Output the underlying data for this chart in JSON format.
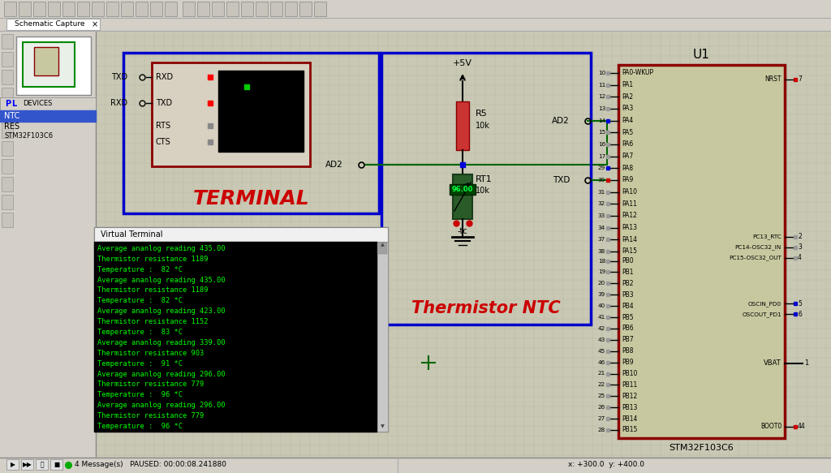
{
  "bg_color": "#c8c8b4",
  "grid_color": "#b8b8a0",
  "toolbar_bg": "#d4d0c8",
  "left_panel_bg": "#d4d0c8",
  "terminal_bg": "#000000",
  "terminal_text_color": "#00ff00",
  "terminal_title": "Virtual Terminal",
  "terminal_lines": [
    "Average ananlog reading 435.00",
    "Thermistor resistance 1189",
    "Temperature :  82 *C",
    "Average ananlog reading 435.00",
    "Thermistor resistance 1189",
    "Temperature :  82 *C",
    "Average ananlog reading 423.00",
    "Thermistor resistance 1152",
    "Temperature :  83 *C",
    "Average ananlog reading 339.00",
    "Thermistor resistance 903",
    "Temperature :  91 *C",
    "Average ananlog reading 296.00",
    "Thermistor resistance 779",
    "Temperature :  96 *C",
    "Average ananlog reading 296.00",
    "Thermistor resistance 779",
    "Temperature :  96 *C"
  ],
  "schematic_title": "Schematic Capture",
  "u1_label": "U1",
  "u1_sublabel": "STM32F103C6",
  "u1_fill": "#c8c8a0",
  "u1_border": "#8b0000",
  "left_pins_pa": [
    {
      "num": "10",
      "name": "PA0-WKUP",
      "sq": "gray"
    },
    {
      "num": "11",
      "name": "PA1",
      "sq": "gray"
    },
    {
      "num": "12",
      "name": "PA2",
      "sq": "gray"
    },
    {
      "num": "13",
      "name": "PA3",
      "sq": "gray"
    },
    {
      "num": "14",
      "name": "PA4",
      "sq": "blue"
    },
    {
      "num": "15",
      "name": "PA5",
      "sq": "gray"
    },
    {
      "num": "16",
      "name": "PA6",
      "sq": "gray"
    },
    {
      "num": "17",
      "name": "PA7",
      "sq": "gray"
    },
    {
      "num": "29",
      "name": "PA8",
      "sq": "blue"
    },
    {
      "num": "30",
      "name": "PA9",
      "sq": "red"
    },
    {
      "num": "31",
      "name": "PA10",
      "sq": "gray"
    },
    {
      "num": "32",
      "name": "PA11",
      "sq": "gray"
    },
    {
      "num": "33",
      "name": "PA12",
      "sq": "gray"
    },
    {
      "num": "34",
      "name": "PA13",
      "sq": "gray"
    },
    {
      "num": "37",
      "name": "PA14",
      "sq": "gray"
    },
    {
      "num": "38",
      "name": "PA15",
      "sq": "gray"
    }
  ],
  "left_pins_pb": [
    {
      "num": "18",
      "name": "PB0",
      "sq": "gray"
    },
    {
      "num": "19",
      "name": "PB1",
      "sq": "gray"
    },
    {
      "num": "20",
      "name": "PB2",
      "sq": "gray"
    },
    {
      "num": "39",
      "name": "PB3",
      "sq": "gray"
    },
    {
      "num": "40",
      "name": "PB4",
      "sq": "gray"
    },
    {
      "num": "41",
      "name": "PB5",
      "sq": "gray"
    },
    {
      "num": "42",
      "name": "PB6",
      "sq": "gray"
    },
    {
      "num": "43",
      "name": "PB7",
      "sq": "gray"
    },
    {
      "num": "45",
      "name": "PB8",
      "sq": "gray"
    },
    {
      "num": "46",
      "name": "PB9",
      "sq": "gray"
    },
    {
      "num": "21",
      "name": "PB10",
      "sq": "gray"
    },
    {
      "num": "22",
      "name": "PB11",
      "sq": "gray"
    },
    {
      "num": "25",
      "name": "PB12",
      "sq": "gray"
    },
    {
      "num": "26",
      "name": "PB13",
      "sq": "gray"
    },
    {
      "num": "27",
      "name": "PB14",
      "sq": "gray"
    },
    {
      "num": "28",
      "name": "PB15",
      "sq": "gray"
    }
  ],
  "terminal_box_color": "#0000cc",
  "terminal_inner_color": "#8b0000",
  "thermistor_box_color": "#0000cc",
  "terminal_label_color": "#cc0000",
  "thermistor_label_color": "#cc0000",
  "status_bar_bg": "#d4d0c8",
  "status_text": "4 Message(s)   PAUSED: 00:00:08.241880",
  "coord_text": "x: +300.0  y: +400.0"
}
